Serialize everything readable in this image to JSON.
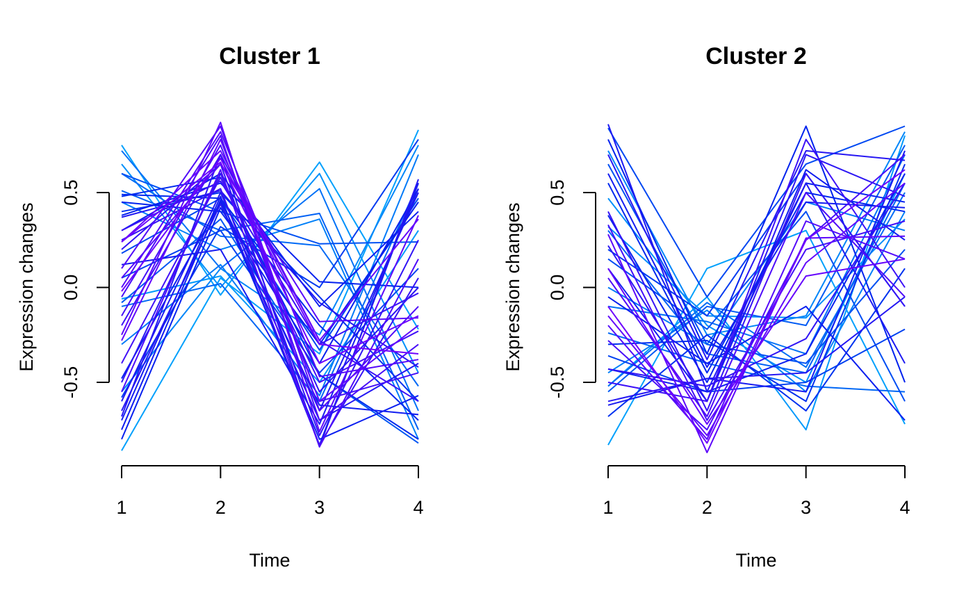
{
  "chart_data": [
    {
      "type": "line",
      "title": "Cluster 1",
      "xlabel": "Time",
      "ylabel": "Expression changes",
      "x": [
        1,
        2,
        3,
        4
      ],
      "x_ticks": [
        "1",
        "2",
        "3",
        "4"
      ],
      "y_ticks": [
        "-0.5",
        "0.0",
        "0.5"
      ],
      "y_tick_values": [
        -0.5,
        0.0,
        0.5
      ],
      "ylim": [
        -0.87,
        0.87
      ],
      "color_scale": {
        "low": "#00bfff",
        "mid": "#0022ee",
        "high": "#7a00ff"
      },
      "series": [
        {
          "membership": 0.1,
          "values": [
            0.75,
            -0.04,
            0.66,
            -0.22
          ]
        },
        {
          "membership": 0.15,
          "values": [
            0.65,
            0.0,
            0.6,
            -0.45
          ]
        },
        {
          "membership": 0.25,
          "values": [
            0.72,
            0.1,
            0.52,
            -0.65
          ]
        },
        {
          "membership": 0.3,
          "values": [
            0.51,
            0.3,
            0.39,
            -0.75
          ]
        },
        {
          "membership": 0.2,
          "values": [
            0.45,
            0.2,
            0.36,
            -0.8
          ]
        },
        {
          "membership": 0.35,
          "values": [
            0.6,
            0.4,
            0.23,
            0.24
          ]
        },
        {
          "membership": 0.1,
          "values": [
            -0.86,
            0.05,
            -0.35,
            0.83
          ]
        },
        {
          "membership": 0.18,
          "values": [
            -0.55,
            0.1,
            -0.25,
            0.75
          ]
        },
        {
          "membership": 0.22,
          "values": [
            -0.3,
            0.12,
            -0.57,
            0.7
          ]
        },
        {
          "membership": 0.28,
          "values": [
            -0.1,
            0.02,
            -0.6,
            0.55
          ]
        },
        {
          "membership": 0.12,
          "values": [
            -0.06,
            0.06,
            -0.5,
            0.3
          ]
        },
        {
          "membership": 0.4,
          "values": [
            0.05,
            0.3,
            -0.45,
            0.1
          ]
        },
        {
          "membership": 0.45,
          "values": [
            0.4,
            0.5,
            -0.05,
            -0.6
          ]
        },
        {
          "membership": 0.5,
          "values": [
            0.45,
            0.4,
            -0.3,
            0.45
          ]
        },
        {
          "membership": 0.55,
          "values": [
            0.3,
            0.6,
            -0.1,
            0.4
          ]
        },
        {
          "membership": 0.6,
          "values": [
            0.12,
            0.2,
            -0.72,
            0.52
          ]
        },
        {
          "membership": 0.48,
          "values": [
            0.49,
            0.47,
            -0.2,
            -0.7
          ]
        },
        {
          "membership": 0.52,
          "values": [
            0.38,
            0.55,
            0.03,
            0.0
          ]
        },
        {
          "membership": 0.58,
          "values": [
            -0.7,
            0.48,
            -0.83,
            0.55
          ]
        },
        {
          "membership": 0.62,
          "values": [
            -0.6,
            0.5,
            -0.65,
            0.5
          ]
        },
        {
          "membership": 0.65,
          "values": [
            -0.65,
            0.44,
            -0.7,
            -0.4
          ]
        },
        {
          "membership": 0.68,
          "values": [
            -0.5,
            0.6,
            -0.55,
            0.0
          ]
        },
        {
          "membership": 0.55,
          "values": [
            -0.48,
            0.45,
            -0.8,
            -0.57
          ]
        },
        {
          "membership": 0.7,
          "values": [
            0.2,
            0.65,
            -0.78,
            0.25
          ]
        },
        {
          "membership": 0.72,
          "values": [
            0.25,
            0.52,
            -0.83,
            0.05
          ]
        },
        {
          "membership": 0.75,
          "values": [
            -0.2,
            0.7,
            -0.28,
            -0.6
          ]
        },
        {
          "membership": 0.78,
          "values": [
            -0.15,
            0.75,
            -0.6,
            -0.45
          ]
        },
        {
          "membership": 0.8,
          "values": [
            -0.05,
            0.8,
            -0.7,
            -0.3
          ]
        },
        {
          "membership": 0.83,
          "values": [
            0.1,
            0.85,
            -0.65,
            -0.1
          ]
        },
        {
          "membership": 0.85,
          "values": [
            0.0,
            0.82,
            -0.47,
            -0.38
          ]
        },
        {
          "membership": 0.88,
          "values": [
            -0.25,
            0.87,
            -0.76,
            0.38
          ]
        },
        {
          "membership": 0.9,
          "values": [
            -0.28,
            0.78,
            -0.6,
            -0.2
          ]
        },
        {
          "membership": 0.92,
          "values": [
            0.24,
            0.72,
            -0.28,
            0.36
          ]
        },
        {
          "membership": 0.95,
          "values": [
            -0.02,
            0.68,
            -0.3,
            -0.35
          ]
        },
        {
          "membership": 0.86,
          "values": [
            0.05,
            0.65,
            -0.18,
            -0.16
          ]
        },
        {
          "membership": 0.82,
          "values": [
            -0.55,
            0.62,
            -0.84,
            0.15
          ]
        },
        {
          "membership": 0.77,
          "values": [
            -0.4,
            0.58,
            -0.5,
            -0.23
          ]
        },
        {
          "membership": 0.74,
          "values": [
            0.3,
            0.56,
            -0.3,
            -0.03
          ]
        },
        {
          "membership": 0.66,
          "values": [
            -0.68,
            0.7,
            -0.84,
            0.57
          ]
        },
        {
          "membership": 0.63,
          "values": [
            0.37,
            0.51,
            -0.08,
            -0.42
          ]
        },
        {
          "membership": 0.57,
          "values": [
            -0.75,
            0.46,
            -0.62,
            -0.67
          ]
        },
        {
          "membership": 0.53,
          "values": [
            -0.8,
            0.42,
            -0.4,
            0.52
          ]
        },
        {
          "membership": 0.47,
          "values": [
            0.48,
            0.58,
            -0.46,
            -0.8
          ]
        },
        {
          "membership": 0.42,
          "values": [
            -0.58,
            0.32,
            0.0,
            0.78
          ]
        },
        {
          "membership": 0.38,
          "values": [
            0.18,
            0.47,
            -0.33,
            0.47
          ]
        },
        {
          "membership": 0.33,
          "values": [
            -0.08,
            0.36,
            -0.46,
            -0.82
          ]
        },
        {
          "membership": 0.27,
          "values": [
            0.6,
            0.27,
            0.22,
            -0.52
          ]
        },
        {
          "membership": 0.95,
          "values": [
            0.24,
            0.66,
            -0.4,
            -0.15
          ]
        }
      ]
    },
    {
      "type": "line",
      "title": "Cluster 2",
      "xlabel": "Time",
      "ylabel": "Expression changes",
      "x": [
        1,
        2,
        3,
        4
      ],
      "x_ticks": [
        "1",
        "2",
        "3",
        "4"
      ],
      "y_ticks": [
        "-0.5",
        "0.0",
        "0.5"
      ],
      "y_tick_values": [
        -0.5,
        0.0,
        0.5
      ],
      "ylim": [
        -0.87,
        0.87
      ],
      "color_scale": {
        "low": "#00bfff",
        "mid": "#0022ee",
        "high": "#7a00ff"
      },
      "series": [
        {
          "membership": 0.1,
          "values": [
            -0.83,
            0.1,
            0.3,
            -0.72
          ]
        },
        {
          "membership": 0.12,
          "values": [
            -0.52,
            -0.05,
            -0.75,
            0.8
          ]
        },
        {
          "membership": 0.15,
          "values": [
            0.47,
            -0.2,
            -0.5,
            0.6
          ]
        },
        {
          "membership": 0.18,
          "values": [
            0.72,
            -0.25,
            -0.15,
            0.82
          ]
        },
        {
          "membership": 0.2,
          "values": [
            -0.45,
            -0.12,
            -0.55,
            0.4
          ]
        },
        {
          "membership": 0.22,
          "values": [
            0.0,
            -0.3,
            0.45,
            0.3
          ]
        },
        {
          "membership": 0.25,
          "values": [
            -0.1,
            -0.18,
            -0.35,
            0.7
          ]
        },
        {
          "membership": 0.28,
          "values": [
            -0.24,
            -0.4,
            -0.52,
            -0.55
          ]
        },
        {
          "membership": 0.3,
          "values": [
            0.3,
            -0.35,
            -0.45,
            0.55
          ]
        },
        {
          "membership": 0.32,
          "values": [
            -0.55,
            -0.1,
            -0.2,
            0.75
          ]
        },
        {
          "membership": 0.35,
          "values": [
            0.65,
            -0.3,
            -0.4,
            0.2
          ]
        },
        {
          "membership": 0.38,
          "values": [
            0.84,
            -0.05,
            0.65,
            0.85
          ]
        },
        {
          "membership": 0.4,
          "values": [
            -0.36,
            -0.55,
            -0.5,
            -0.22
          ]
        },
        {
          "membership": 0.42,
          "values": [
            0.2,
            -0.15,
            0.6,
            -0.1
          ]
        },
        {
          "membership": 0.45,
          "values": [
            -0.68,
            -0.25,
            -0.65,
            0.1
          ]
        },
        {
          "membership": 0.48,
          "values": [
            0.55,
            -0.45,
            0.5,
            0.4
          ]
        },
        {
          "membership": 0.5,
          "values": [
            0.78,
            -0.35,
            0.85,
            -0.5
          ]
        },
        {
          "membership": 0.52,
          "values": [
            0.38,
            -0.5,
            0.55,
            0.45
          ]
        },
        {
          "membership": 0.55,
          "values": [
            -0.43,
            -0.55,
            -0.35,
            0.6
          ]
        },
        {
          "membership": 0.57,
          "values": [
            0.1,
            -0.6,
            0.62,
            0.25
          ]
        },
        {
          "membership": 0.6,
          "values": [
            -0.62,
            -0.48,
            -0.55,
            0.72
          ]
        },
        {
          "membership": 0.62,
          "values": [
            0.86,
            -0.55,
            0.55,
            -0.4
          ]
        },
        {
          "membership": 0.65,
          "values": [
            -0.6,
            -0.48,
            -0.45,
            -0.05
          ]
        },
        {
          "membership": 0.68,
          "values": [
            0.22,
            -0.6,
            0.7,
            0.48
          ]
        },
        {
          "membership": 0.7,
          "values": [
            -0.43,
            -0.52,
            -0.27,
            0.55
          ]
        },
        {
          "membership": 0.72,
          "values": [
            0.4,
            -0.65,
            0.6,
            -0.1
          ]
        },
        {
          "membership": 0.75,
          "values": [
            -0.5,
            -0.6,
            0.78,
            0.0
          ]
        },
        {
          "membership": 0.78,
          "values": [
            0.33,
            -0.7,
            0.2,
            0.35
          ]
        },
        {
          "membership": 0.8,
          "values": [
            -0.28,
            -0.75,
            0.25,
            0.7
          ]
        },
        {
          "membership": 0.82,
          "values": [
            0.05,
            -0.68,
            0.5,
            -0.05
          ]
        },
        {
          "membership": 0.85,
          "values": [
            -0.2,
            -0.8,
            0.35,
            0.15
          ]
        },
        {
          "membership": 0.88,
          "values": [
            0.28,
            -0.87,
            0.26,
            0.27
          ]
        },
        {
          "membership": 0.9,
          "values": [
            -0.15,
            -0.78,
            0.13,
            0.55
          ]
        },
        {
          "membership": 0.92,
          "values": [
            0.1,
            -0.72,
            0.06,
            0.15
          ]
        },
        {
          "membership": 0.95,
          "values": [
            -0.1,
            -0.82,
            0.25,
            0.62
          ]
        },
        {
          "membership": 0.58,
          "values": [
            0.6,
            -0.42,
            0.45,
            0.42
          ]
        },
        {
          "membership": 0.46,
          "values": [
            -0.3,
            -0.28,
            -0.6,
            0.65
          ]
        },
        {
          "membership": 0.36,
          "values": [
            0.15,
            -0.22,
            0.4,
            -0.6
          ]
        },
        {
          "membership": 0.26,
          "values": [
            -0.52,
            -0.08,
            -0.42,
            0.5
          ]
        },
        {
          "membership": 0.16,
          "values": [
            0.32,
            -0.15,
            -0.16,
            0.36
          ]
        },
        {
          "membership": 0.66,
          "values": [
            0.7,
            -0.38,
            0.72,
            0.67
          ]
        },
        {
          "membership": 0.54,
          "values": [
            -0.05,
            -0.4,
            -0.1,
            -0.7
          ]
        }
      ]
    }
  ]
}
